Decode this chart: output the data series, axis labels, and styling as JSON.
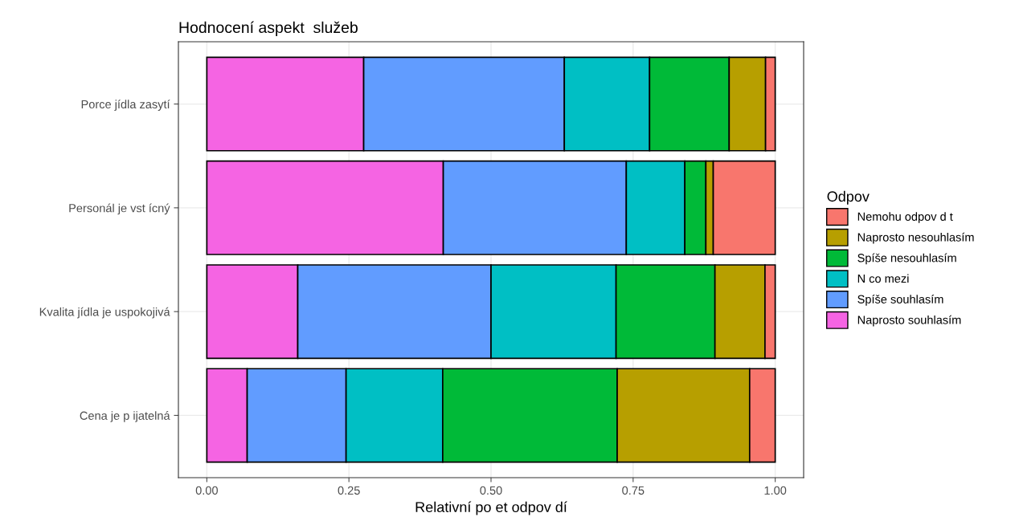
{
  "chart_data": {
    "type": "bar",
    "orientation": "horizontal",
    "stacked": true,
    "title": "Hodnocení aspekt  služeb",
    "xlabel": "Relativní po et odpov dí",
    "legend_title": "Odpov",
    "legend": "right",
    "grid": true,
    "categories": [
      "Porce jídla zasytí",
      "Personál je vst ícný",
      "Kvalita jídla je uspokojivá",
      "Cena je p ijatelná"
    ],
    "xlim": [
      -0.05,
      1.05
    ],
    "xticks": [
      {
        "value": 0,
        "label": "0.00"
      },
      {
        "value": 0.25,
        "label": "0.25"
      },
      {
        "value": 0.5,
        "label": "0.50"
      },
      {
        "value": 0.75,
        "label": "0.75"
      },
      {
        "value": 1,
        "label": "1.00"
      }
    ],
    "series": [
      {
        "name": "Naprosto souhlasím",
        "color": "#f564e3",
        "values": [
          0.276,
          0.416,
          0.16,
          0.071
        ]
      },
      {
        "name": "Spíše souhlasím",
        "color": "#619cff",
        "values": [
          0.353,
          0.322,
          0.34,
          0.174
        ]
      },
      {
        "name": "N co mezi",
        "color": "#00bfc4",
        "values": [
          0.15,
          0.103,
          0.22,
          0.17
        ]
      },
      {
        "name": "Spíše nesouhlasím",
        "color": "#00ba38",
        "values": [
          0.14,
          0.037,
          0.174,
          0.307
        ]
      },
      {
        "name": "Naprosto nesouhlasím",
        "color": "#b79f00",
        "values": [
          0.064,
          0.013,
          0.088,
          0.233
        ]
      },
      {
        "name": "Nemohu odpov d t",
        "color": "#f8766d",
        "values": [
          0.017,
          0.109,
          0.018,
          0.045
        ]
      }
    ]
  }
}
